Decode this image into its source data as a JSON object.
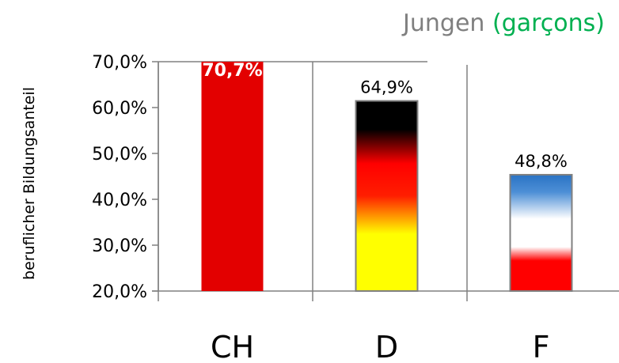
{
  "chart_data": {
    "type": "bar",
    "title": "Jungen",
    "title_suffix": "(garçons)",
    "xlabel": "",
    "ylabel": "beruflicher Bildungsanteil",
    "categories": [
      "CH",
      "D",
      "F"
    ],
    "values": [
      70.7,
      64.9,
      48.8
    ],
    "value_labels": [
      "70,7%",
      "64,9%",
      "48,8%"
    ],
    "yticks": [
      "20,0%",
      "30,0%",
      "40,0%",
      "50,0%",
      "60,0%",
      "70,0%"
    ],
    "ylim": [
      20,
      70
    ],
    "grid": "vertical",
    "bar_fills": [
      "swiss-red",
      "german-flag-gradient",
      "french-flag-gradient"
    ],
    "colors": {
      "title": "#7f7f7f",
      "title_suffix": "#00b050",
      "swiss_red": "#e30000"
    }
  }
}
